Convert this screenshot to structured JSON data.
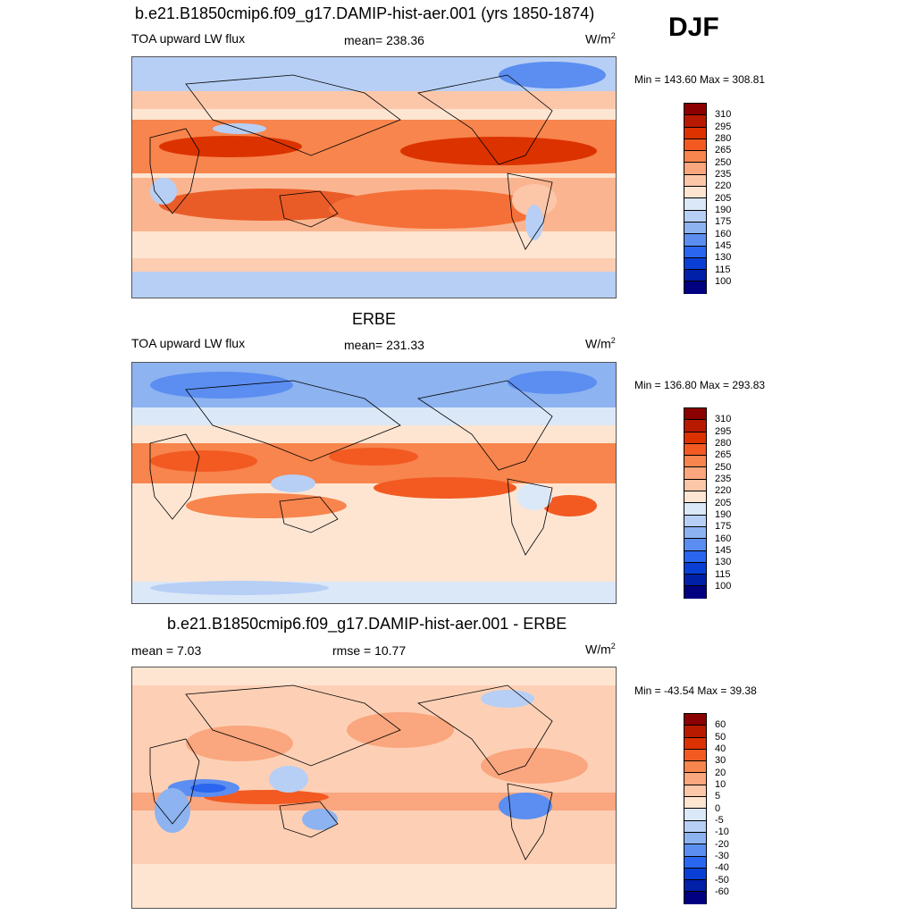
{
  "season": "DJF",
  "panels": [
    {
      "title": "b.e21.B1850cmip6.f09_g17.DAMIP-hist-aer.001 (yrs 1850-1874)",
      "variable": "TOA upward LW flux",
      "stat_left": "",
      "mean": "mean= 238.36",
      "units": "W/m",
      "units_sup": "2",
      "minmax": "Min = 143.60 Max = 308.81",
      "colorbar_labels": [
        "310",
        "295",
        "280",
        "265",
        "250",
        "235",
        "220",
        "205",
        "190",
        "175",
        "160",
        "145",
        "130",
        "115",
        "100"
      ]
    },
    {
      "title": "ERBE",
      "variable": "TOA upward LW flux",
      "stat_left": "",
      "mean": "mean= 231.33",
      "units": "W/m",
      "units_sup": "2",
      "minmax": "Min = 136.80 Max = 293.83",
      "colorbar_labels": [
        "310",
        "295",
        "280",
        "265",
        "250",
        "235",
        "220",
        "205",
        "190",
        "175",
        "160",
        "145",
        "130",
        "115",
        "100"
      ]
    },
    {
      "title": "b.e21.B1850cmip6.f09_g17.DAMIP-hist-aer.001 - ERBE",
      "variable": "",
      "stat_left": "mean =   7.03",
      "mean": "rmse =  10.77",
      "units": "W/m",
      "units_sup": "2",
      "minmax": "Min = -43.54 Max =  39.38",
      "colorbar_labels": [
        "60",
        "50",
        "40",
        "30",
        "20",
        "10",
        "5",
        "0",
        "-5",
        "-10",
        "-20",
        "-30",
        "-40",
        "-50",
        "-60"
      ]
    }
  ],
  "colors": {
    "abs_scale": [
      "#8b0000",
      "#b81a00",
      "#dc3200",
      "#f25a22",
      "#f7854d",
      "#faa67e",
      "#fcc7a9",
      "#fde5d2",
      "#dbe8f7",
      "#b7cff5",
      "#8db3f0",
      "#5b8ef0",
      "#2a66ef",
      "#0a3fd6",
      "#0020a8",
      "#000080"
    ],
    "diff_scale": [
      "#8b0000",
      "#b81a00",
      "#dc3200",
      "#f25a22",
      "#f7854d",
      "#faa67e",
      "#fcc7a9",
      "#fde5d2",
      "#dbe8f7",
      "#b7cff5",
      "#8db3f0",
      "#5b8ef0",
      "#2a66ef",
      "#0a3fd6",
      "#0020a8",
      "#000080"
    ]
  }
}
